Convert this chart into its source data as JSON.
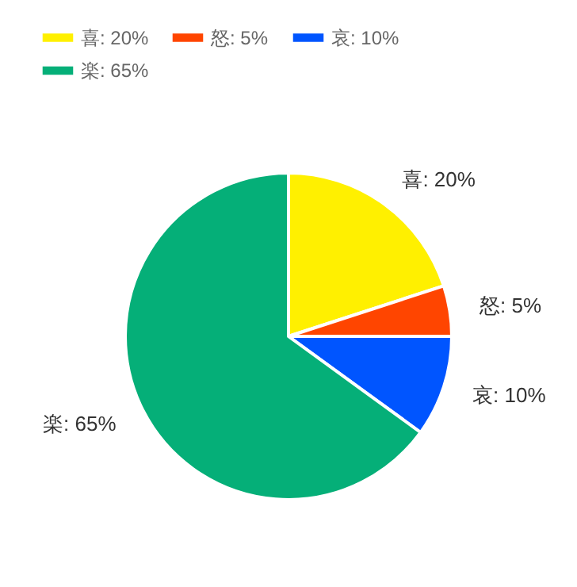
{
  "chart_data": {
    "type": "pie",
    "categories": [
      "喜: 20%",
      "怒: 5%",
      "哀: 10%",
      "楽: 65%"
    ],
    "values": [
      20,
      5,
      10,
      65
    ],
    "colors": [
      "#fff000",
      "#ff4500",
      "#0055ff",
      "#05af78"
    ],
    "legend": "top left"
  }
}
